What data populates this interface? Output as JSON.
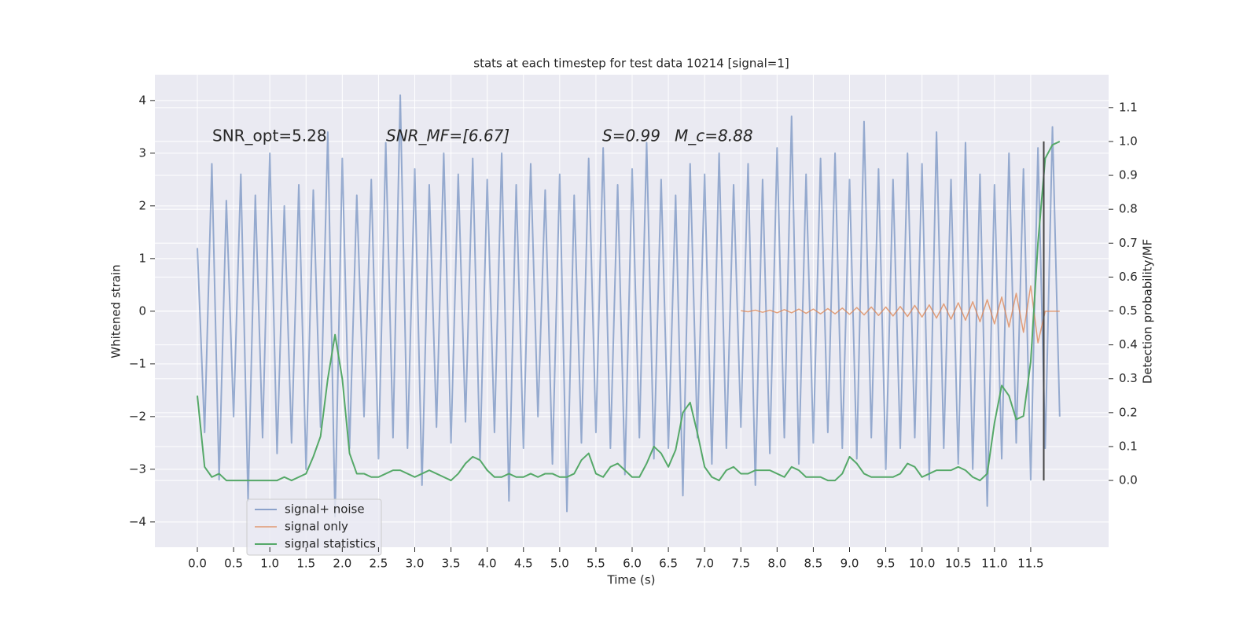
{
  "chart_data": {
    "type": "line",
    "title": "stats at each timestep for test data 10214 [signal=1]",
    "xlabel": "Time (s)",
    "ylabel": "Whitened strain",
    "y2label": "Detection probability/MF",
    "annotations": [
      "SNR_opt=5.28",
      "SNR_MF=[6.67]",
      "S=0.99",
      "M_c=8.88"
    ],
    "xlim": [
      -0.586,
      12.575
    ],
    "ylim": [
      -4.48,
      4.49
    ],
    "y2lim": [
      -0.197,
      1.197
    ],
    "xticks": [
      {
        "value": 0,
        "label": "0.0"
      },
      {
        "value": 0.5,
        "label": "0.5"
      },
      {
        "value": 1,
        "label": "1.0"
      },
      {
        "value": 1.5,
        "label": "1.5"
      },
      {
        "value": 2,
        "label": "2.0"
      },
      {
        "value": 2.5,
        "label": "2.5"
      },
      {
        "value": 3,
        "label": "3.0"
      },
      {
        "value": 3.5,
        "label": "3.5"
      },
      {
        "value": 4,
        "label": "4.0"
      },
      {
        "value": 4.5,
        "label": "4.5"
      },
      {
        "value": 5,
        "label": "5.0"
      },
      {
        "value": 5.5,
        "label": "5.5"
      },
      {
        "value": 6,
        "label": "6.0"
      },
      {
        "value": 6.5,
        "label": "6.5"
      },
      {
        "value": 7,
        "label": "7.0"
      },
      {
        "value": 7.5,
        "label": "7.5"
      },
      {
        "value": 8,
        "label": "8.0"
      },
      {
        "value": 8.5,
        "label": "8.5"
      },
      {
        "value": 9,
        "label": "9.0"
      },
      {
        "value": 9.5,
        "label": "9.5"
      },
      {
        "value": 10,
        "label": "10.0"
      },
      {
        "value": 10.5,
        "label": "10.5"
      },
      {
        "value": 11,
        "label": "11.0"
      },
      {
        "value": 11.5,
        "label": "11.5"
      }
    ],
    "yticks": [
      {
        "value": -4,
        "label": "−4"
      },
      {
        "value": -3,
        "label": "−3"
      },
      {
        "value": -2,
        "label": "−2"
      },
      {
        "value": -1,
        "label": "−1"
      },
      0,
      1,
      2,
      3,
      4
    ],
    "y2ticks": [
      {
        "value": 0,
        "label": "0.0"
      },
      {
        "value": 0.1,
        "label": "0.1"
      },
      {
        "value": 0.2,
        "label": "0.2"
      },
      {
        "value": 0.3,
        "label": "0.3"
      },
      {
        "value": 0.4,
        "label": "0.4"
      },
      {
        "value": 0.5,
        "label": "0.5"
      },
      {
        "value": 0.6,
        "label": "0.6"
      },
      {
        "value": 0.7,
        "label": "0.7"
      },
      {
        "value": 0.8,
        "label": "0.8"
      },
      {
        "value": 0.9,
        "label": "0.9"
      },
      {
        "value": 1,
        "label": "1.0"
      },
      {
        "value": 1.1,
        "label": "1.1"
      }
    ],
    "grid": true,
    "legend": "lower left",
    "vline": {
      "x": 11.68,
      "y2": [
        0,
        1
      ],
      "color": "#444444"
    },
    "x": [
      0,
      0.1,
      0.2,
      0.3,
      0.4,
      0.5,
      0.6,
      0.7,
      0.8,
      0.9,
      1,
      1.1,
      1.2,
      1.3,
      1.4,
      1.5,
      1.6,
      1.7,
      1.8,
      1.9,
      2,
      2.1,
      2.2,
      2.3,
      2.4,
      2.5,
      2.6,
      2.7,
      2.8,
      2.9,
      3,
      3.1,
      3.2,
      3.3,
      3.4,
      3.5,
      3.6,
      3.7,
      3.8,
      3.9,
      4,
      4.1,
      4.2,
      4.3,
      4.4,
      4.5,
      4.6,
      4.7,
      4.8,
      4.9,
      5,
      5.1,
      5.2,
      5.3,
      5.4,
      5.5,
      5.6,
      5.7,
      5.8,
      5.9,
      6,
      6.1,
      6.2,
      6.3,
      6.4,
      6.5,
      6.6,
      6.7,
      6.8,
      6.9,
      7,
      7.1,
      7.2,
      7.3,
      7.4,
      7.5,
      7.6,
      7.7,
      7.8,
      7.9,
      8,
      8.1,
      8.2,
      8.3,
      8.4,
      8.5,
      8.6,
      8.7,
      8.8,
      8.9,
      9,
      9.1,
      9.2,
      9.3,
      9.4,
      9.5,
      9.6,
      9.7,
      9.8,
      9.9,
      10,
      10.1,
      10.2,
      10.3,
      10.4,
      10.5,
      10.6,
      10.7,
      10.8,
      10.9,
      11,
      11.1,
      11.2,
      11.3,
      11.4,
      11.5,
      11.6,
      11.7,
      11.8,
      11.9
    ],
    "series": [
      {
        "name": "signal+ noise",
        "color": "#4c72b0",
        "values": [
          1.2,
          -2.3,
          2.8,
          -3.2,
          2.1,
          -2.0,
          2.6,
          -3.6,
          2.2,
          -2.4,
          3.0,
          -2.7,
          2.0,
          -2.5,
          2.4,
          -3.0,
          2.3,
          -2.2,
          3.4,
          -3.9,
          2.9,
          -2.6,
          2.2,
          -2.0,
          2.5,
          -2.8,
          3.2,
          -2.4,
          4.1,
          -2.6,
          2.7,
          -3.3,
          2.4,
          -2.2,
          3.0,
          -2.5,
          2.6,
          -2.1,
          2.9,
          -2.8,
          2.5,
          -2.3,
          3.0,
          -3.6,
          2.4,
          -2.6,
          2.8,
          -2.0,
          2.3,
          -2.9,
          2.6,
          -3.8,
          2.2,
          -2.5,
          2.9,
          -2.3,
          3.1,
          -2.6,
          2.4,
          -3.1,
          2.7,
          -2.4,
          3.2,
          -2.8,
          2.5,
          -2.6,
          2.2,
          -3.5,
          2.8,
          -2.4,
          2.6,
          -2.9,
          3.0,
          -2.6,
          2.4,
          -2.2,
          2.8,
          -3.3,
          2.5,
          -2.7,
          3.1,
          -2.4,
          3.7,
          -2.9,
          2.6,
          -2.5,
          2.9,
          -2.3,
          3.0,
          -2.6,
          2.5,
          -2.8,
          3.6,
          -2.4,
          2.7,
          -3.0,
          2.5,
          -2.6,
          3.0,
          -2.4,
          2.8,
          -3.2,
          3.4,
          -2.6,
          2.5,
          -2.9,
          3.2,
          -3.0,
          2.6,
          -3.7,
          2.4,
          -2.8,
          3.0,
          -2.5,
          2.7,
          -3.2,
          3.1,
          -2.6,
          3.5,
          -2.0
        ]
      },
      {
        "name": "signal only",
        "color": "#dd8452",
        "values": [
          null,
          null,
          null,
          null,
          null,
          null,
          null,
          null,
          null,
          null,
          null,
          null,
          null,
          null,
          null,
          null,
          null,
          null,
          null,
          null,
          null,
          null,
          null,
          null,
          null,
          null,
          null,
          null,
          null,
          null,
          null,
          null,
          null,
          null,
          null,
          null,
          null,
          null,
          null,
          null,
          null,
          null,
          null,
          null,
          null,
          null,
          null,
          null,
          null,
          null,
          null,
          null,
          null,
          null,
          null,
          null,
          null,
          null,
          null,
          null,
          null,
          null,
          null,
          null,
          null,
          null,
          null,
          null,
          null,
          null,
          null,
          null,
          null,
          null,
          null,
          0.01,
          -0.01,
          0.02,
          -0.02,
          0.02,
          -0.03,
          0.03,
          -0.03,
          0.04,
          -0.04,
          0.04,
          -0.05,
          0.05,
          -0.05,
          0.06,
          -0.06,
          0.07,
          -0.07,
          0.08,
          -0.08,
          0.08,
          -0.09,
          0.09,
          -0.1,
          0.11,
          -0.11,
          0.12,
          -0.13,
          0.14,
          -0.15,
          0.16,
          -0.17,
          0.18,
          -0.2,
          0.22,
          -0.24,
          0.27,
          -0.3,
          0.34,
          -0.4,
          0.48,
          -0.6,
          0.0,
          0.0,
          0.0
        ]
      },
      {
        "name": "signal statistics",
        "color": "#55a868",
        "axis": "y2",
        "values": [
          0.25,
          0.04,
          0.01,
          0.02,
          0.0,
          0.0,
          0.0,
          0.0,
          0.0,
          0.0,
          0.0,
          0.0,
          0.01,
          0.0,
          0.01,
          0.02,
          0.07,
          0.13,
          0.3,
          0.43,
          0.3,
          0.08,
          0.02,
          0.02,
          0.01,
          0.01,
          0.02,
          0.03,
          0.03,
          0.02,
          0.01,
          0.02,
          0.03,
          0.02,
          0.01,
          0.0,
          0.02,
          0.05,
          0.07,
          0.06,
          0.03,
          0.01,
          0.01,
          0.02,
          0.01,
          0.01,
          0.02,
          0.01,
          0.02,
          0.02,
          0.01,
          0.01,
          0.02,
          0.06,
          0.08,
          0.02,
          0.01,
          0.04,
          0.05,
          0.03,
          0.01,
          0.01,
          0.05,
          0.1,
          0.08,
          0.04,
          0.09,
          0.2,
          0.23,
          0.14,
          0.04,
          0.01,
          0.0,
          0.03,
          0.04,
          0.02,
          0.02,
          0.03,
          0.03,
          0.03,
          0.02,
          0.01,
          0.04,
          0.03,
          0.01,
          0.01,
          0.01,
          0.0,
          0.0,
          0.02,
          0.07,
          0.05,
          0.02,
          0.01,
          0.01,
          0.01,
          0.01,
          0.02,
          0.05,
          0.04,
          0.01,
          0.02,
          0.03,
          0.03,
          0.03,
          0.04,
          0.03,
          0.01,
          0.0,
          0.02,
          0.17,
          0.28,
          0.25,
          0.18,
          0.19,
          0.35,
          0.7,
          0.95,
          0.99,
          1.0
        ]
      }
    ]
  }
}
